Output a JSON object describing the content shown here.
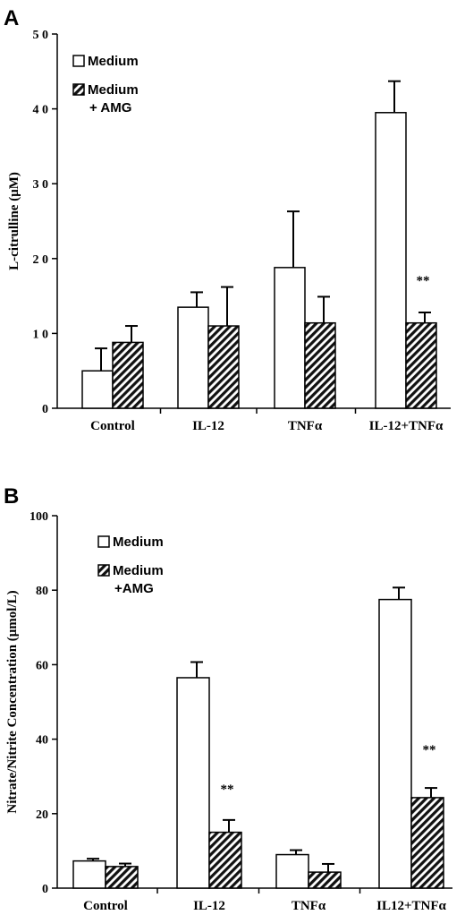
{
  "chart_data": [
    {
      "panel": "A",
      "type": "bar",
      "categories": [
        "Control",
        "IL-12",
        "TNFα",
        "IL-12+TNFα"
      ],
      "series": [
        {
          "name": "Medium",
          "values": [
            5,
            13.5,
            18.8,
            39.5
          ],
          "errors": [
            3,
            2,
            7.5,
            4.2
          ]
        },
        {
          "name": "Medium + AMG",
          "values": [
            8.8,
            11,
            11.4,
            11.4
          ],
          "errors": [
            2.2,
            5.2,
            3.5,
            1.4
          ]
        }
      ],
      "legend": [
        {
          "lines": [
            "Medium"
          ],
          "pattern": "open"
        },
        {
          "lines": [
            "Medium",
            "+ AMG"
          ],
          "pattern": "hatched"
        }
      ],
      "ylabel": "L-citrulline (μM)",
      "ylim": [
        0,
        50
      ],
      "yticks": [
        0,
        10,
        20,
        30,
        40,
        50
      ],
      "yticklabels": [
        "0",
        "1 0",
        "2 0",
        "3 0",
        "4 0",
        "5 0"
      ],
      "annotations": [
        {
          "category": 3,
          "series": 1,
          "text": "**",
          "y": 16.5
        }
      ],
      "legend_position": "top-left"
    },
    {
      "panel": "B",
      "type": "bar",
      "categories": [
        "Control",
        "IL-12",
        "TNFα",
        "IL12+TNFα"
      ],
      "series": [
        {
          "name": "Medium",
          "values": [
            7.3,
            56.5,
            9,
            77.5
          ],
          "errors": [
            0.6,
            4.2,
            1.2,
            3.2
          ]
        },
        {
          "name": "Medium +AMG",
          "values": [
            5.8,
            15,
            4.3,
            24.3
          ],
          "errors": [
            0.8,
            3.3,
            2.2,
            2.6
          ]
        }
      ],
      "legend": [
        {
          "lines": [
            "Medium"
          ],
          "pattern": "open"
        },
        {
          "lines": [
            "Medium",
            "+AMG"
          ],
          "pattern": "hatched"
        }
      ],
      "ylabel": "Nitrate/Nitrite Concentration (μmol/L)",
      "ylim": [
        0,
        100
      ],
      "yticks": [
        0,
        20,
        40,
        60,
        80,
        100
      ],
      "yticklabels": [
        "0",
        "20",
        "40",
        "60",
        "80",
        "100"
      ],
      "annotations": [
        {
          "category": 1,
          "series": 1,
          "text": "**",
          "y": 25.5
        },
        {
          "category": 3,
          "series": 1,
          "text": "**",
          "y": 36
        }
      ],
      "legend_position": "top-left"
    }
  ]
}
